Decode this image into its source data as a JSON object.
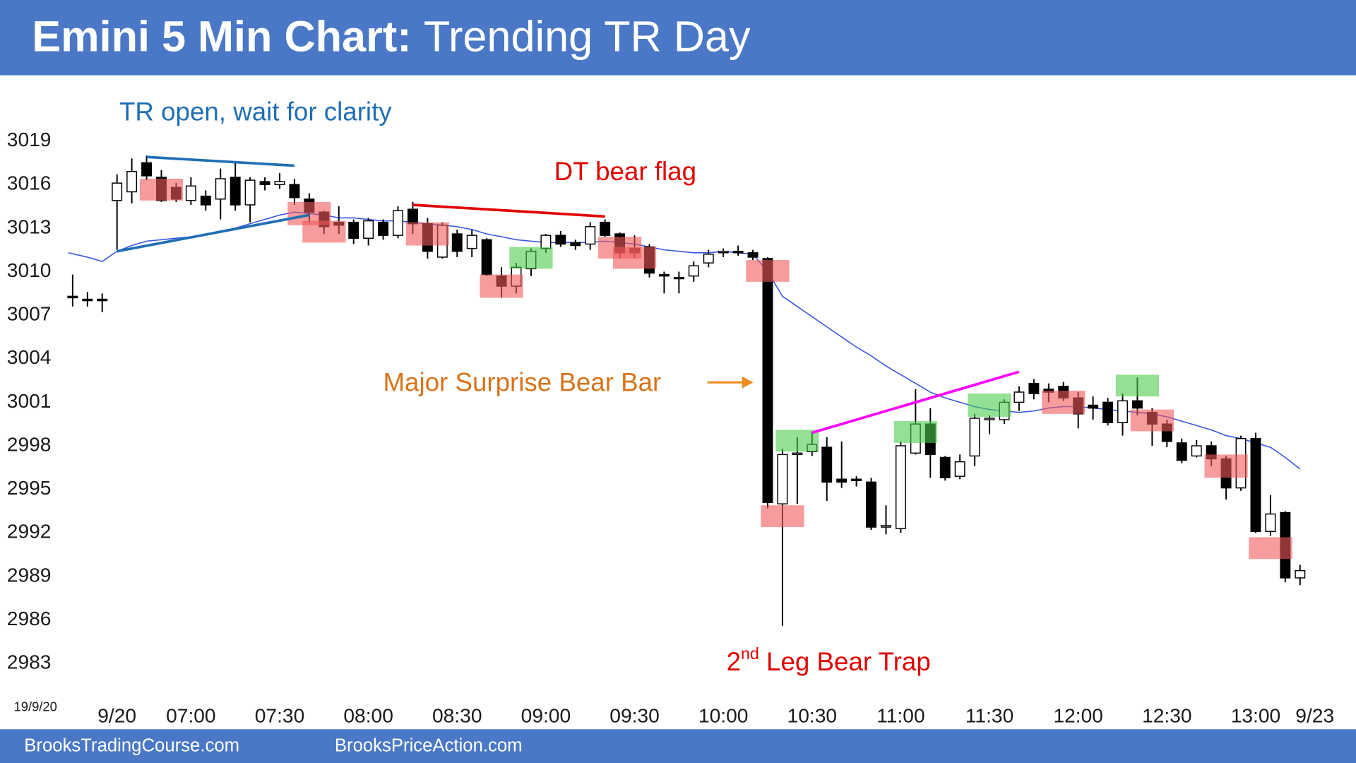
{
  "header": {
    "title_bold": "Emini 5 Min Chart:",
    "title_rest": "Trending TR Day"
  },
  "footer": {
    "left": "BrooksTradingCourse.com",
    "right": "BrooksPriceAction.com"
  },
  "chart_data": {
    "type": "candlestick",
    "date_label": "19/9/20",
    "categories": [
      null,
      null,
      null,
      "9/20",
      null,
      null,
      null,
      null,
      "07:00",
      null,
      null,
      null,
      null,
      null,
      "07:30",
      null,
      null,
      null,
      null,
      null,
      "08:00",
      null,
      null,
      null,
      null,
      null,
      "08:30",
      null,
      null,
      null,
      null,
      null,
      "09:00",
      null,
      null,
      null,
      null,
      null,
      "09:30",
      null,
      null,
      null,
      null,
      null,
      "10:00",
      null,
      null,
      null,
      null,
      null,
      "10:30",
      null,
      null,
      null,
      null,
      null,
      "11:00",
      null,
      null,
      null,
      null,
      null,
      "11:30",
      null,
      null,
      null,
      null,
      null,
      "12:00",
      null,
      null,
      null,
      null,
      null,
      "12:30",
      null,
      null,
      null,
      null,
      null,
      "13:00",
      null,
      null,
      null,
      "9/23"
    ],
    "open": [
      3008.3,
      3008.1,
      3008.1,
      3014.9,
      3015.5,
      3017.5,
      3016.5,
      3015.8,
      3014.9,
      3015.2,
      3015.0,
      3016.5,
      3014.6,
      3016.2,
      3016.0,
      3016.0,
      3015.0,
      3014.1,
      3013.4,
      3013.4,
      3012.3,
      3013.4,
      3012.5,
      3014.3,
      3013.3,
      3011.0,
      3012.6,
      3011.6,
      3012.2,
      3009.7,
      3009.0,
      3010.2,
      3011.6,
      3012.5,
      3012.0,
      3011.9,
      3013.4,
      3012.6,
      3011.6,
      3011.7,
      3009.8,
      3009.6,
      3009.7,
      3010.6,
      3011.3,
      3011.4,
      3011.3,
      3010.9,
      2994.0,
      2997.4,
      2997.6,
      2997.9,
      2995.7,
      2995.7,
      2995.5,
      2992.4,
      2992.3,
      2997.5,
      2999.5,
      2997.2,
      2995.9,
      2997.3,
      2999.8,
      2999.8,
      3001.0,
      3002.3,
      3001.9,
      3002.1,
      3001.3,
      3000.8,
      3001.0,
      2999.6,
      3001.1,
      3000.3,
      2999.5,
      2998.2,
      2997.3,
      2998.0,
      2997.1,
      2995.1,
      2998.5,
      2992.1,
      2993.4,
      2988.9,
      null
    ],
    "high": [
      3009.8,
      3008.6,
      3008.5,
      3016.7,
      3017.8,
      3018.0,
      3017.0,
      3016.1,
      3016.5,
      3015.6,
      3017.1,
      3017.5,
      3016.5,
      3016.5,
      3016.8,
      3016.4,
      3015.4,
      3014.2,
      3014.5,
      3013.6,
      3013.7,
      3013.6,
      3014.5,
      3014.8,
      3013.7,
      3013.4,
      3012.9,
      3012.9,
      3012.3,
      3010.3,
      3010.6,
      3011.6,
      3012.6,
      3012.8,
      3012.2,
      3013.4,
      3013.6,
      3012.7,
      3012.5,
      3011.9,
      3010.0,
      3010.0,
      3010.7,
      3011.5,
      3011.6,
      3011.8,
      3011.5,
      3011.0,
      2997.8,
      2998.6,
      2999.0,
      2998.6,
      2998.3,
      2995.9,
      2995.8,
      2993.9,
      2998.3,
      3001.9,
      3000.6,
      2997.3,
      2997.4,
      3000.2,
      3000.1,
      3001.2,
      3002.1,
      3002.6,
      3002.3,
      3002.4,
      3001.7,
      3001.4,
      3001.3,
      3001.6,
      3002.7,
      3000.6,
      2999.8,
      2998.5,
      2998.4,
      2998.3,
      2997.3,
      2998.7,
      2998.9,
      2994.6,
      2993.5,
      2989.8,
      null
    ],
    "low": [
      3007.6,
      3007.6,
      3007.2,
      3011.5,
      3014.7,
      3016.3,
      3014.8,
      3014.8,
      3014.6,
      3014.2,
      3013.6,
      3014.2,
      3013.4,
      3015.6,
      3015.7,
      3014.6,
      3013.4,
      3012.6,
      3012.6,
      3011.9,
      3011.8,
      3012.2,
      3012.3,
      3012.6,
      3010.9,
      3010.9,
      3011.0,
      3011.0,
      3009.7,
      3008.2,
      3008.5,
      3009.7,
      3011.3,
      3011.7,
      3011.5,
      3011.5,
      3012.4,
      3010.9,
      3010.9,
      3009.6,
      3008.5,
      3008.5,
      3009.3,
      3010.3,
      3011.0,
      3011.1,
      3010.8,
      2993.7,
      2985.6,
      2994.0,
      2997.3,
      2994.2,
      2995.1,
      2995.2,
      2992.2,
      2991.9,
      2992.0,
      2997.4,
      2995.8,
      2995.6,
      2995.7,
      2996.6,
      2998.8,
      2999.5,
      3000.4,
      3001.2,
      3001.0,
      3001.1,
      2999.2,
      2999.8,
      2999.4,
      2998.7,
      3000.1,
      2998.0,
      2997.9,
      2996.8,
      2997.2,
      2996.6,
      2994.3,
      2994.9,
      2992.0,
      2991.8,
      2988.6,
      2988.4,
      null
    ],
    "close": [
      3008.2,
      3008.0,
      3008.0,
      3016.1,
      3016.9,
      3016.6,
      3014.9,
      3015.0,
      3015.9,
      3014.6,
      3016.4,
      3014.6,
      3016.3,
      3016.0,
      3016.2,
      3015.1,
      3014.1,
      3013.1,
      3013.2,
      3012.3,
      3013.5,
      3012.5,
      3014.2,
      3013.3,
      3011.4,
      3013.2,
      3011.4,
      3012.5,
      3009.8,
      3009.0,
      3010.3,
      3011.4,
      3012.5,
      3011.9,
      3011.8,
      3013.1,
      3012.5,
      3011.3,
      3011.3,
      3009.9,
      3009.7,
      3009.6,
      3010.4,
      3011.2,
      3011.4,
      3011.3,
      3011.0,
      2994.1,
      2997.4,
      2997.5,
      2998.1,
      2995.5,
      2995.5,
      2995.6,
      2992.4,
      2992.5,
      2998.0,
      2999.5,
      2997.4,
      2995.8,
      2996.9,
      2999.9,
      2999.9,
      3001.0,
      3001.7,
      3001.6,
      3001.7,
      3001.3,
      3000.2,
      3000.6,
      2999.6,
      3001.1,
      3000.6,
      2999.5,
      2998.3,
      2997.0,
      2998.0,
      2997.1,
      2995.1,
      2998.5,
      2992.1,
      2993.3,
      2988.9,
      2989.4,
      null
    ],
    "up_color": "#ffffff",
    "down_color": "#000000",
    "ema": {
      "color": "#3a55e0",
      "values": [
        3011.3,
        3011.0,
        3010.7,
        3011.4,
        3011.8,
        3012.1,
        3012.2,
        3012.3,
        3012.4,
        3012.6,
        3012.8,
        3013.0,
        3013.3,
        3013.6,
        3013.9,
        3014.1,
        3014.0,
        3013.9,
        3013.7,
        3013.7,
        3013.6,
        3013.5,
        3013.5,
        3013.4,
        3013.3,
        3013.2,
        3013.1,
        3012.9,
        3012.6,
        3012.4,
        3012.2,
        3012.1,
        3012.0,
        3012.0,
        3012.0,
        3012.0,
        3012.1,
        3012.0,
        3011.9,
        3011.7,
        3011.5,
        3011.4,
        3011.3,
        3011.3,
        3011.4,
        3011.3,
        3011.2,
        3010.0,
        3008.3,
        3007.6,
        3006.9,
        3006.2,
        3005.5,
        3004.8,
        3004.2,
        3003.5,
        3002.9,
        3002.3,
        3001.7,
        3001.3,
        3001.0,
        3000.7,
        3000.5,
        3000.4,
        3000.3,
        3000.4,
        3000.6,
        3000.7,
        3000.7,
        3000.6,
        3000.5,
        3000.4,
        3000.3,
        3000.2,
        3000.0,
        2999.7,
        2999.4,
        2999.1,
        2998.7,
        2998.5,
        2998.2,
        2997.9,
        2997.2,
        2996.4,
        null
      ]
    },
    "ylim": [
      2983,
      3019
    ],
    "yticks": [
      3019,
      3016,
      3013,
      3010,
      3007,
      3004,
      3001,
      2998,
      2995,
      2992,
      2989,
      2986,
      2983
    ],
    "highlights": [
      {
        "bar": 6,
        "high": 3016.4,
        "low": 3014.9,
        "color": "#f05a5a"
      },
      {
        "bar": 16,
        "high": 3014.8,
        "low": 3013.2,
        "color": "#f05a5a"
      },
      {
        "bar": 17,
        "high": 3013.5,
        "low": 3012.0,
        "color": "#f05a5a"
      },
      {
        "bar": 24,
        "high": 3013.4,
        "low": 3011.8,
        "color": "#f05a5a"
      },
      {
        "bar": 29,
        "high": 3009.8,
        "low": 3008.2,
        "color": "#f05a5a"
      },
      {
        "bar": 31,
        "high": 3011.7,
        "low": 3010.2,
        "color": "#4ccc4c"
      },
      {
        "bar": 37,
        "high": 3012.4,
        "low": 3010.9,
        "color": "#f05a5a"
      },
      {
        "bar": 38,
        "high": 3011.7,
        "low": 3010.2,
        "color": "#f05a5a"
      },
      {
        "bar": 47,
        "high": 3010.8,
        "low": 3009.3,
        "color": "#f05a5a"
      },
      {
        "bar": 48,
        "high": 2993.9,
        "low": 2992.4,
        "color": "#f05a5a"
      },
      {
        "bar": 49,
        "high": 2999.1,
        "low": 2997.6,
        "color": "#4ccc4c"
      },
      {
        "bar": 57,
        "high": 2999.7,
        "low": 2998.2,
        "color": "#4ccc4c"
      },
      {
        "bar": 62,
        "high": 3001.6,
        "low": 3000.0,
        "color": "#4ccc4c"
      },
      {
        "bar": 67,
        "high": 3001.8,
        "low": 3000.2,
        "color": "#f05a5a"
      },
      {
        "bar": 72,
        "high": 3002.9,
        "low": 3001.4,
        "color": "#4ccc4c"
      },
      {
        "bar": 73,
        "high": 3000.5,
        "low": 2999.0,
        "color": "#f05a5a"
      },
      {
        "bar": 78,
        "high": 2997.4,
        "low": 2995.8,
        "color": "#f05a5a"
      },
      {
        "bar": 81,
        "high": 2991.7,
        "low": 2990.2,
        "color": "#f05a5a"
      }
    ],
    "trendlines": [
      {
        "start_bar": 5,
        "start": 3017.9,
        "end_bar": 15,
        "end": 3017.3,
        "color": "#1f6fb5"
      },
      {
        "start_bar": 3,
        "start": 3011.4,
        "end_bar": 16,
        "end": 3013.9,
        "color": "#1f6fb5"
      },
      {
        "start_bar": 23,
        "start": 3014.6,
        "end_bar": 36,
        "end": 3013.8,
        "color": "#e00000"
      },
      {
        "start_bar": 50,
        "start": 2998.9,
        "end_bar": 64,
        "end": 3003.1,
        "color": "#ff00ff"
      }
    ],
    "annotations": [
      {
        "parts": [
          "TR open, wait for clarity"
        ],
        "color": "#1f6fb5"
      },
      {
        "parts": [
          "DT bear flag"
        ],
        "color": "#e00000"
      },
      {
        "parts": [
          "Major Surprise Bear Bar"
        ],
        "color": "#d9731a"
      },
      {
        "parts": [
          "2",
          "nd",
          " Leg Bear Trap"
        ],
        "color": "#e00000"
      }
    ]
  }
}
